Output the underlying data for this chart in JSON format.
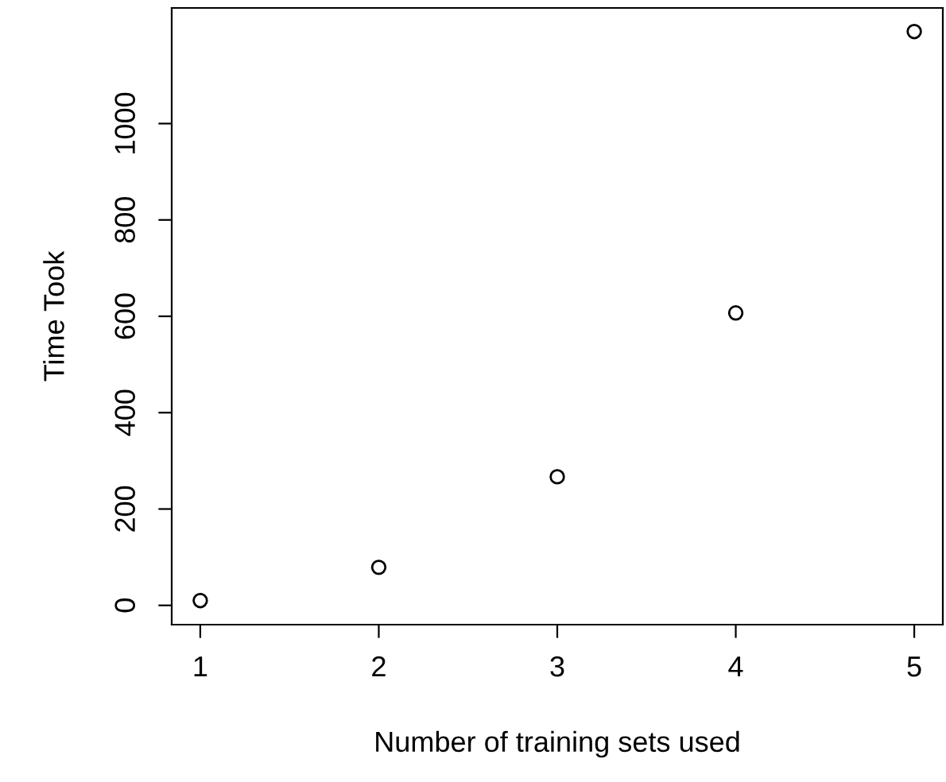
{
  "chart_data": {
    "type": "scatter",
    "xlabel": "Number of training sets used",
    "ylabel": "Time Took",
    "x": [
      1,
      2,
      3,
      4,
      5
    ],
    "values": [
      10,
      79,
      267,
      607,
      1191
    ],
    "color": "#000000",
    "marker": "circle",
    "xlim": [
      0.84,
      5.16
    ],
    "ylim": [
      -40,
      1240
    ],
    "xticks": [
      1,
      2,
      3,
      4,
      5
    ],
    "yticks": [
      0,
      200,
      400,
      600,
      800,
      1000
    ],
    "grid": false,
    "legend": false
  }
}
